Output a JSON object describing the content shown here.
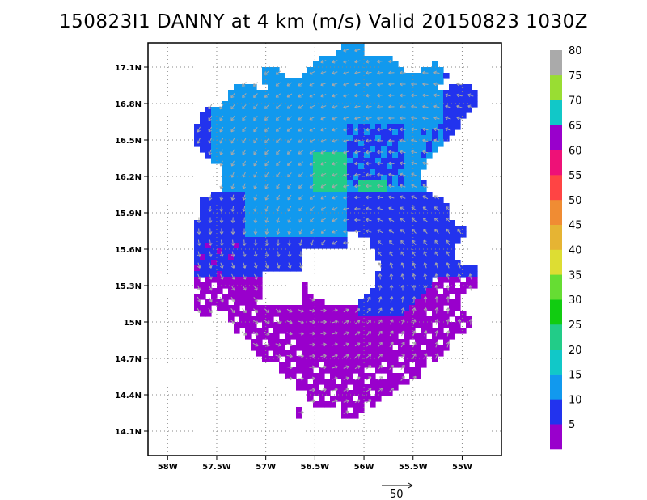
{
  "title": "150823I1 DANNY at 4 km (m/s) Valid 20150823 1030Z",
  "map": {
    "lon_range": [
      -58.2,
      -54.6
    ],
    "lat_range": [
      13.9,
      17.3
    ],
    "lon_ticks": [
      -58,
      -57.5,
      -57,
      -56.5,
      -56,
      -55.5,
      -55
    ],
    "lon_tick_labels": [
      "58W",
      "57.5W",
      "57W",
      "56.5W",
      "56W",
      "55.5W",
      "55W"
    ],
    "lat_ticks": [
      14.1,
      14.4,
      14.7,
      15.0,
      15.3,
      15.6,
      15.9,
      16.2,
      16.5,
      16.8,
      17.1
    ],
    "lat_tick_labels": [
      "14.1N",
      "14.4N",
      "14.7N",
      "15N",
      "15.3N",
      "15.6N",
      "15.9N",
      "16.2N",
      "16.5N",
      "16.8N",
      "17.1N"
    ],
    "grid": true,
    "grid_style": "dotted"
  },
  "colorbar": {
    "labels": [
      "5",
      "10",
      "15",
      "20",
      "25",
      "30",
      "35",
      "40",
      "45",
      "50",
      "55",
      "60",
      "65",
      "70",
      "75",
      "80"
    ],
    "colors": [
      "#9900cc",
      "#2233ee",
      "#1199ee",
      "#11c8c8",
      "#22cc88",
      "#11cc11",
      "#66dd33",
      "#dddd33",
      "#e6b433",
      "#f08c33",
      "#ff4444",
      "#ee1177",
      "#9900cc",
      "#11c8c8",
      "#99dd33",
      "#aaaaaa"
    ]
  },
  "reference_vector": {
    "label": "50"
  },
  "wind_colors": {
    "purple": "#9900cc",
    "blue": "#2233ee",
    "lightblue": "#1199ee",
    "cyan": "#11c8c8",
    "teal": "#22cc88"
  },
  "vector_color": "#a8a8a8"
}
